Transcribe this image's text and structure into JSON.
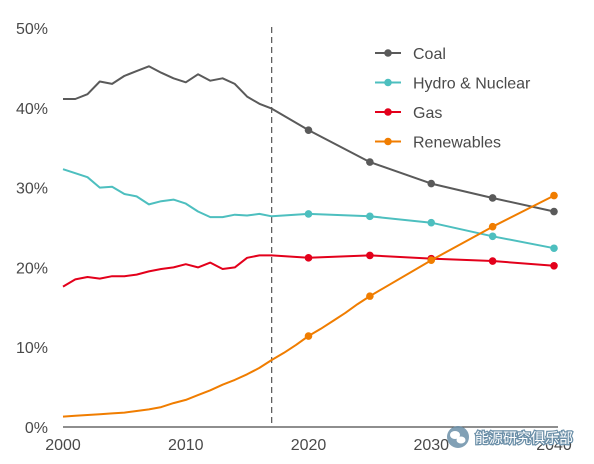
{
  "chart_data": {
    "type": "line",
    "title": "",
    "xlabel": "",
    "ylabel": "",
    "xlim": [
      2000,
      2040
    ],
    "ylim": [
      0,
      50
    ],
    "x_ticks": [
      "2000",
      "2010",
      "2020",
      "2030",
      "2040"
    ],
    "y_ticks": [
      "0%",
      "10%",
      "20%",
      "30%",
      "40%",
      "50%"
    ],
    "grid": false,
    "legend_position": "top-right",
    "divider_year": 2017,
    "series": [
      {
        "name": "Coal",
        "color": "#5a5a5a",
        "x": [
          2000,
          2001,
          2002,
          2003,
          2004,
          2005,
          2006,
          2007,
          2008,
          2009,
          2010,
          2011,
          2012,
          2013,
          2014,
          2015,
          2016,
          2017,
          2020,
          2025,
          2030,
          2035,
          2040
        ],
        "y": [
          41.1,
          41.1,
          41.7,
          43.3,
          43.0,
          44.0,
          44.6,
          45.2,
          44.4,
          43.7,
          43.2,
          44.2,
          43.4,
          43.7,
          43.0,
          41.4,
          40.5,
          39.9,
          37.2,
          33.2,
          30.5,
          28.7,
          27.0
        ],
        "markers": [
          2020,
          2025,
          2030,
          2035,
          2040
        ]
      },
      {
        "name": "Hydro & Nuclear",
        "color": "#4dbfbf",
        "x": [
          2000,
          2001,
          2002,
          2003,
          2004,
          2005,
          2006,
          2007,
          2008,
          2009,
          2010,
          2011,
          2012,
          2013,
          2014,
          2015,
          2016,
          2017,
          2020,
          2025,
          2030,
          2035,
          2040
        ],
        "y": [
          32.3,
          31.8,
          31.3,
          30.0,
          30.1,
          29.2,
          28.9,
          27.9,
          28.3,
          28.5,
          28.0,
          27.0,
          26.3,
          26.3,
          26.6,
          26.5,
          26.7,
          26.4,
          26.7,
          26.4,
          25.6,
          23.9,
          22.4
        ],
        "markers": [
          2020,
          2025,
          2030,
          2035,
          2040
        ]
      },
      {
        "name": "Gas",
        "color": "#e3001b",
        "x": [
          2000,
          2001,
          2002,
          2003,
          2004,
          2005,
          2006,
          2007,
          2008,
          2009,
          2010,
          2011,
          2012,
          2013,
          2014,
          2015,
          2016,
          2017,
          2020,
          2025,
          2030,
          2035,
          2040
        ],
        "y": [
          17.6,
          18.5,
          18.8,
          18.6,
          18.9,
          18.9,
          19.1,
          19.5,
          19.8,
          20.0,
          20.4,
          20.0,
          20.6,
          19.8,
          20.0,
          21.2,
          21.5,
          21.5,
          21.2,
          21.5,
          21.1,
          20.8,
          20.2
        ],
        "markers": [
          2020,
          2025,
          2030,
          2035,
          2040
        ]
      },
      {
        "name": "Renewables",
        "color": "#f07d00",
        "x": [
          2000,
          2001,
          2002,
          2003,
          2004,
          2005,
          2006,
          2007,
          2008,
          2009,
          2010,
          2011,
          2012,
          2013,
          2014,
          2015,
          2016,
          2017,
          2018,
          2019,
          2020,
          2021,
          2022,
          2023,
          2024,
          2025,
          2030,
          2035,
          2040
        ],
        "y": [
          1.3,
          1.4,
          1.5,
          1.6,
          1.7,
          1.8,
          2.0,
          2.2,
          2.5,
          3.0,
          3.4,
          4.0,
          4.6,
          5.3,
          5.9,
          6.6,
          7.4,
          8.4,
          9.3,
          10.3,
          11.4,
          12.3,
          13.3,
          14.3,
          15.4,
          16.4,
          20.9,
          25.1,
          29.0
        ],
        "markers": [
          2020,
          2025,
          2030,
          2035,
          2040
        ]
      }
    ]
  },
  "watermark": {
    "icon": "wechat-icon",
    "text": "能源研究俱乐部"
  }
}
